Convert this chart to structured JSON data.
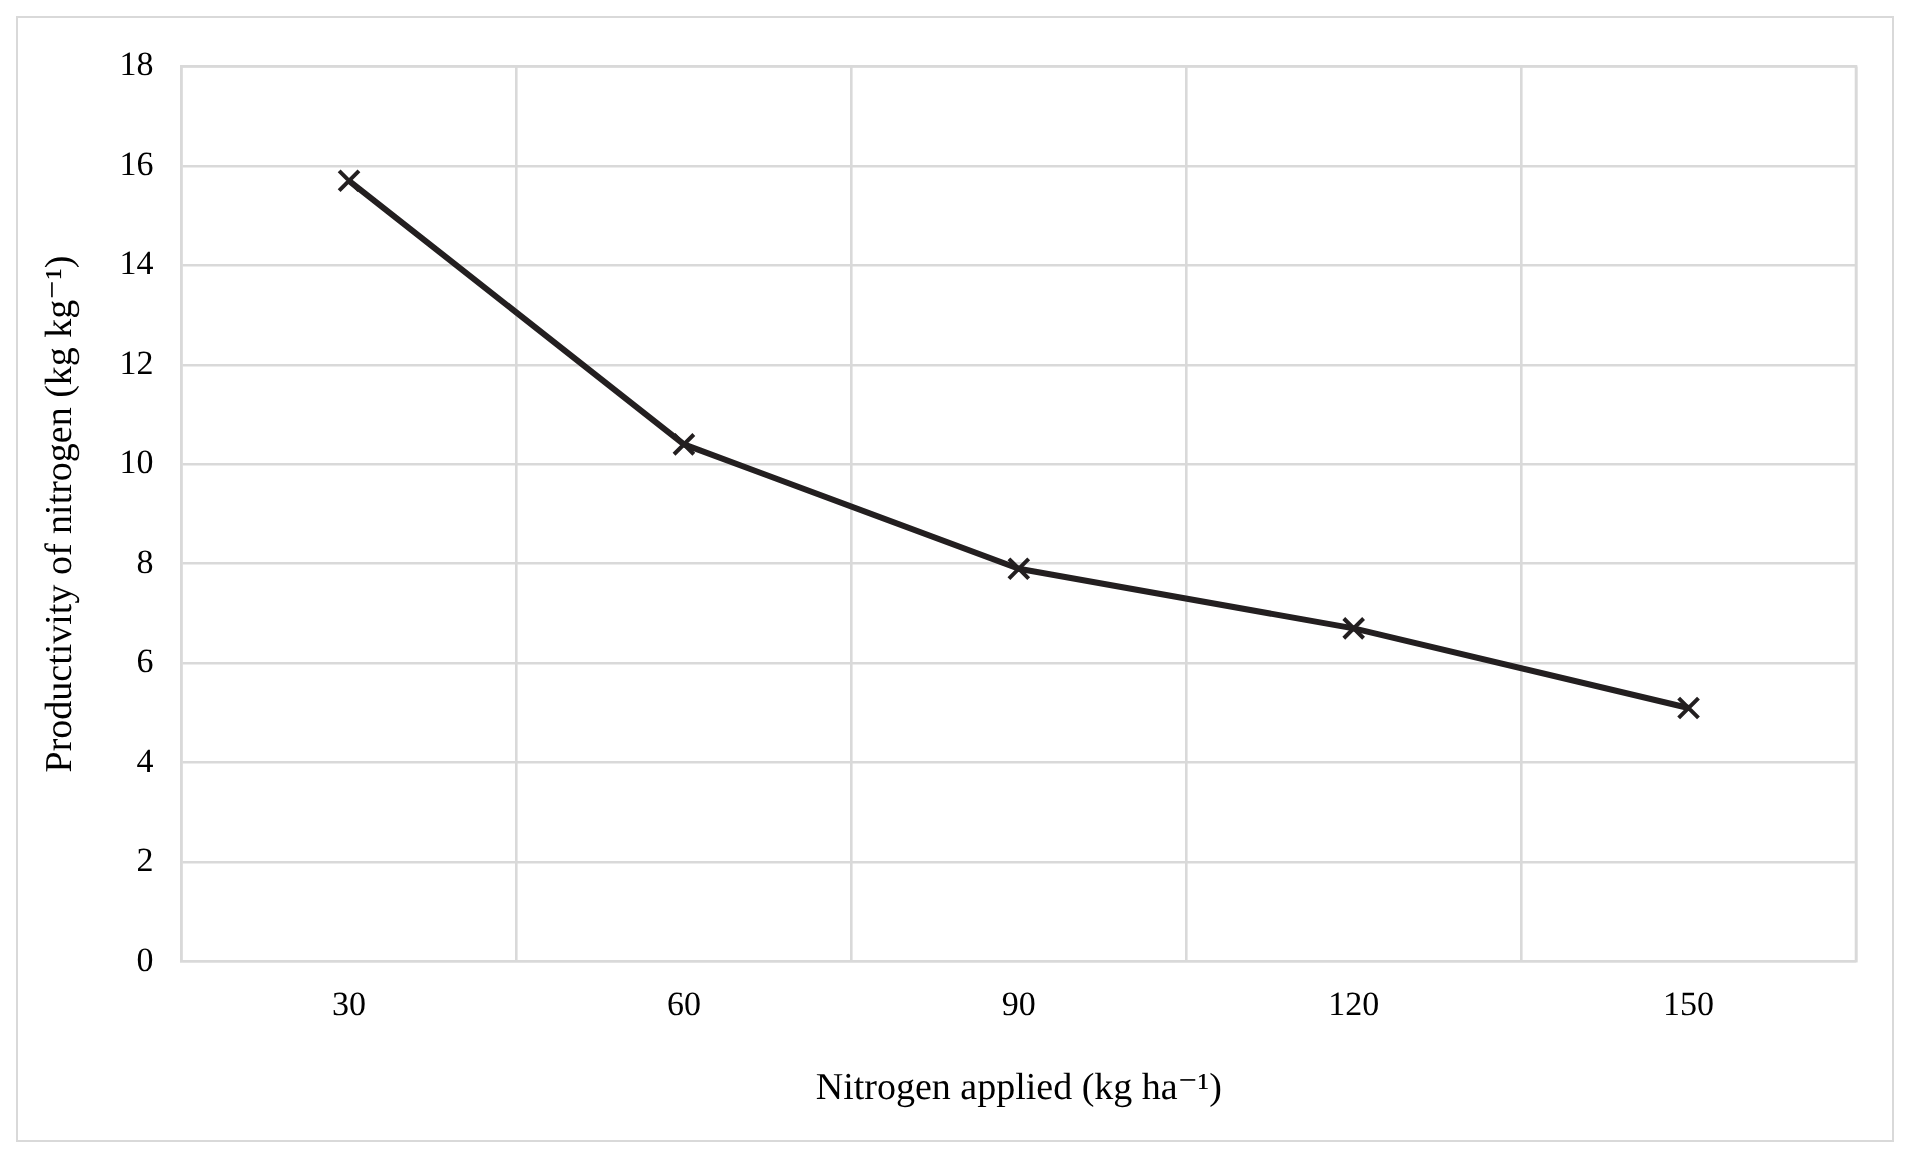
{
  "chart_data": {
    "type": "line",
    "xlabel": "Nitrogen applied (kg ha⁻¹)",
    "ylabel": "Productivity of nitrogen (kg kg⁻¹)",
    "categories": [
      "30",
      "60",
      "90",
      "120",
      "150"
    ],
    "series": [
      {
        "color": "#231f20",
        "values": [
          15.7,
          10.4,
          7.9,
          6.7,
          5.1
        ]
      }
    ],
    "ylim": [
      0,
      18
    ],
    "yticks": [
      0,
      2,
      4,
      6,
      8,
      10,
      12,
      14,
      16,
      18
    ],
    "grid": true,
    "legend": false,
    "marker": "cross",
    "line_style": "solid"
  }
}
